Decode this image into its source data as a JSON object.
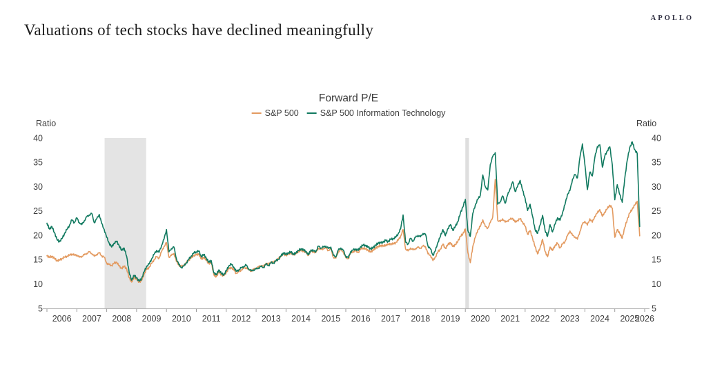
{
  "header": {
    "title": "Valuations of tech stocks have declined meaningfully",
    "logo": "APOLLO"
  },
  "chart_data": {
    "type": "line",
    "title": "Forward P/E",
    "ylabel": "Ratio",
    "xlim": [
      2006,
      2026
    ],
    "ylim": [
      5,
      40
    ],
    "y_ticks": [
      40,
      35,
      30,
      25,
      20,
      15,
      10,
      5
    ],
    "x_ticks": [
      2006,
      2007,
      2008,
      2009,
      2010,
      2011,
      2012,
      2013,
      2014,
      2015,
      2016,
      2017,
      2018,
      2019,
      2020,
      2021,
      2022,
      2023,
      2024,
      2025,
      2026
    ],
    "x_start": 2006.0,
    "x_step_years": 0.0833333,
    "grid": false,
    "legend_position": "top",
    "axis_labels_both_sides": true,
    "shaded_regions": [
      {
        "name": "recession-band",
        "x0": 2007.93,
        "x1": 2009.32,
        "color": "#E4E4E4"
      },
      {
        "name": "covid-recession-band",
        "x0": 2020.0,
        "x1": 2020.12,
        "color": "#DEDEDE"
      }
    ],
    "series": [
      {
        "id": "sp500",
        "name": "S&P 500",
        "color": "#E39A60",
        "values": [
          15.8,
          15.5,
          15.7,
          15.3,
          14.8,
          14.9,
          15.2,
          15.5,
          15.7,
          15.9,
          16.2,
          15.9,
          16.0,
          15.5,
          15.7,
          16.0,
          16.3,
          16.6,
          16.3,
          15.7,
          16.1,
          16.4,
          15.8,
          15.5,
          14.3,
          14.0,
          13.8,
          14.3,
          14.5,
          13.7,
          13.2,
          13.7,
          13.1,
          11.3,
          10.4,
          11.4,
          11.0,
          10.4,
          10.7,
          12.0,
          13.0,
          13.4,
          14.2,
          15.0,
          15.6,
          15.3,
          16.6,
          17.7,
          18.5,
          15.5,
          15.9,
          16.3,
          14.6,
          13.9,
          13.6,
          13.9,
          14.4,
          15.0,
          15.4,
          15.9,
          16.0,
          16.2,
          15.1,
          15.5,
          14.9,
          14.2,
          14.4,
          11.9,
          11.5,
          12.5,
          11.9,
          11.7,
          12.4,
          13.1,
          13.4,
          12.9,
          12.2,
          12.5,
          12.9,
          13.2,
          13.4,
          12.9,
          12.7,
          13.0,
          13.3,
          13.5,
          13.8,
          13.6,
          14.3,
          14.0,
          14.6,
          14.4,
          14.9,
          15.2,
          15.8,
          16.2,
          15.9,
          16.2,
          16.4,
          16.0,
          16.3,
          16.7,
          16.9,
          16.8,
          16.5,
          15.9,
          16.8,
          16.6,
          16.5,
          17.4,
          17.1,
          17.3,
          17.4,
          16.9,
          17.2,
          15.5,
          15.3,
          16.7,
          17.0,
          16.6,
          15.4,
          15.2,
          16.4,
          16.7,
          16.8,
          16.5,
          17.2,
          17.4,
          17.2,
          16.9,
          16.6,
          17.0,
          17.4,
          17.7,
          17.9,
          17.8,
          18.0,
          18.1,
          18.3,
          18.2,
          18.5,
          19.0,
          19.8,
          21.2,
          17.2,
          16.8,
          17.4,
          17.0,
          17.3,
          17.5,
          17.4,
          17.8,
          17.7,
          16.2,
          15.9,
          14.8,
          15.6,
          16.6,
          17.2,
          18.2,
          17.3,
          18.1,
          18.5,
          17.7,
          18.1,
          18.8,
          19.8,
          20.3,
          21.3,
          16.5,
          14.4,
          17.7,
          19.6,
          21.1,
          21.8,
          23.2,
          21.8,
          21.5,
          22.6,
          23.8,
          31.5,
          23.1,
          22.8,
          23.4,
          22.7,
          23.0,
          23.3,
          23.5,
          22.7,
          23.1,
          23.4,
          22.7,
          21.9,
          20.2,
          21.0,
          19.4,
          17.7,
          16.2,
          17.4,
          19.2,
          16.7,
          15.6,
          17.6,
          16.9,
          17.9,
          18.4,
          17.4,
          18.2,
          18.7,
          19.9,
          20.9,
          20.0,
          19.7,
          19.2,
          20.8,
          22.3,
          22.9,
          22.1,
          23.4,
          22.7,
          23.9,
          24.6,
          25.3,
          23.9,
          24.8,
          25.5,
          26.2,
          25.6,
          19.6,
          21.2,
          20.4,
          19.4,
          21.6,
          23.2,
          24.6,
          25.4,
          26.2,
          27.0,
          19.9
        ]
      },
      {
        "id": "tech",
        "name": "S&P 500 Information Technology",
        "color": "#10795F",
        "values": [
          22.5,
          21.3,
          21.8,
          20.6,
          19.2,
          18.7,
          19.3,
          20.3,
          21.2,
          22.0,
          23.2,
          22.6,
          23.6,
          22.6,
          22.2,
          23.0,
          23.8,
          24.2,
          24.5,
          22.6,
          23.4,
          24.3,
          22.4,
          21.2,
          19.6,
          18.4,
          17.6,
          18.4,
          18.8,
          17.9,
          16.9,
          17.4,
          15.7,
          12.4,
          10.8,
          11.8,
          11.3,
          10.6,
          11.1,
          12.5,
          13.6,
          14.1,
          15.1,
          16.1,
          16.9,
          16.5,
          17.9,
          19.2,
          21.2,
          16.6,
          17.3,
          17.6,
          15.2,
          14.0,
          13.4,
          13.7,
          14.4,
          15.1,
          15.8,
          16.4,
          16.6,
          16.8,
          15.6,
          16.1,
          15.3,
          14.5,
          14.8,
          12.3,
          11.9,
          12.9,
          12.2,
          11.9,
          12.7,
          13.7,
          14.1,
          13.5,
          12.6,
          12.9,
          13.3,
          13.6,
          13.9,
          13.1,
          12.7,
          12.9,
          13.1,
          13.3,
          13.6,
          13.4,
          14.1,
          13.8,
          14.4,
          14.3,
          14.8,
          15.1,
          15.8,
          16.4,
          16.1,
          16.4,
          16.6,
          16.1,
          16.4,
          16.9,
          17.2,
          17.0,
          16.7,
          16.0,
          17.0,
          16.8,
          16.7,
          17.8,
          17.4,
          17.6,
          17.8,
          17.3,
          17.6,
          15.9,
          15.6,
          17.0,
          17.4,
          16.9,
          15.7,
          15.4,
          16.7,
          17.0,
          17.2,
          16.9,
          17.7,
          18.0,
          17.9,
          17.6,
          17.2,
          17.5,
          18.0,
          18.4,
          18.5,
          18.6,
          19.0,
          18.7,
          19.2,
          19.3,
          19.6,
          20.3,
          21.3,
          24.2,
          18.6,
          18.2,
          19.4,
          18.8,
          19.6,
          20.0,
          19.7,
          20.4,
          20.2,
          17.8,
          17.2,
          15.9,
          16.9,
          18.6,
          19.8,
          21.2,
          19.9,
          21.4,
          22.2,
          21.0,
          21.9,
          22.8,
          24.6,
          25.8,
          27.4,
          21.0,
          19.8,
          24.5,
          26.2,
          27.4,
          28.2,
          32.4,
          30.0,
          29.3,
          34.5,
          36.2,
          37.0,
          26.4,
          26.9,
          28.1,
          26.6,
          28.3,
          29.6,
          31.0,
          29.0,
          30.1,
          31.3,
          29.2,
          27.6,
          25.1,
          26.4,
          23.9,
          21.2,
          20.4,
          22.1,
          24.1,
          21.0,
          19.8,
          22.2,
          20.7,
          22.3,
          23.6,
          23.1,
          24.6,
          26.3,
          28.4,
          29.2,
          31.5,
          32.5,
          31.8,
          36.0,
          38.8,
          34.5,
          29.4,
          33.0,
          32.2,
          36.0,
          38.2,
          38.6,
          34.0,
          36.3,
          37.4,
          38.2,
          34.5,
          27.3,
          30.4,
          28.4,
          26.8,
          31.6,
          35.4,
          38.0,
          39.2,
          37.6,
          36.8,
          21.8
        ]
      }
    ]
  }
}
